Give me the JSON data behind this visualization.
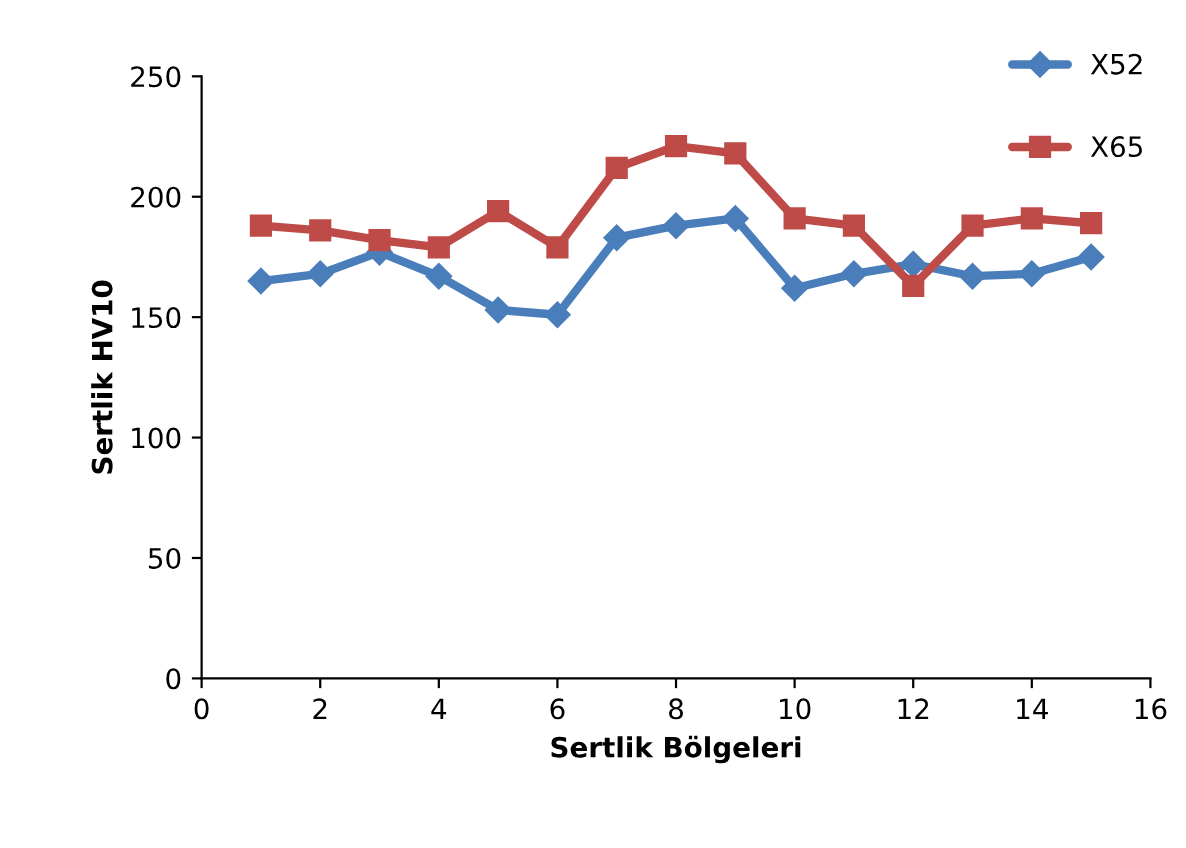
{
  "chart_data": {
    "type": "line",
    "xlabel": "Sertlik Bölgeleri",
    "ylabel": "Sertlik HV10",
    "x": [
      1,
      2,
      3,
      4,
      5,
      6,
      7,
      8,
      9,
      10,
      11,
      12,
      13,
      14,
      15
    ],
    "series": [
      {
        "name": "X52",
        "color": "#4a7ebb",
        "marker": "diamond",
        "values": [
          165,
          168,
          177,
          167,
          153,
          151,
          183,
          188,
          191,
          162,
          168,
          172,
          167,
          168,
          175
        ]
      },
      {
        "name": "X65",
        "color": "#be4b48",
        "marker": "square",
        "values": [
          188,
          186,
          182,
          179,
          194,
          179,
          212,
          221,
          218,
          191,
          188,
          163,
          188,
          191,
          189
        ]
      }
    ],
    "xlim": [
      0,
      16
    ],
    "xticks": [
      0,
      2,
      4,
      6,
      8,
      10,
      12,
      14,
      16
    ],
    "ylim": [
      0,
      250
    ],
    "yticks": [
      0,
      50,
      100,
      150,
      200,
      250
    ],
    "grid": false,
    "legend": "top right",
    "line_style": "solid"
  }
}
